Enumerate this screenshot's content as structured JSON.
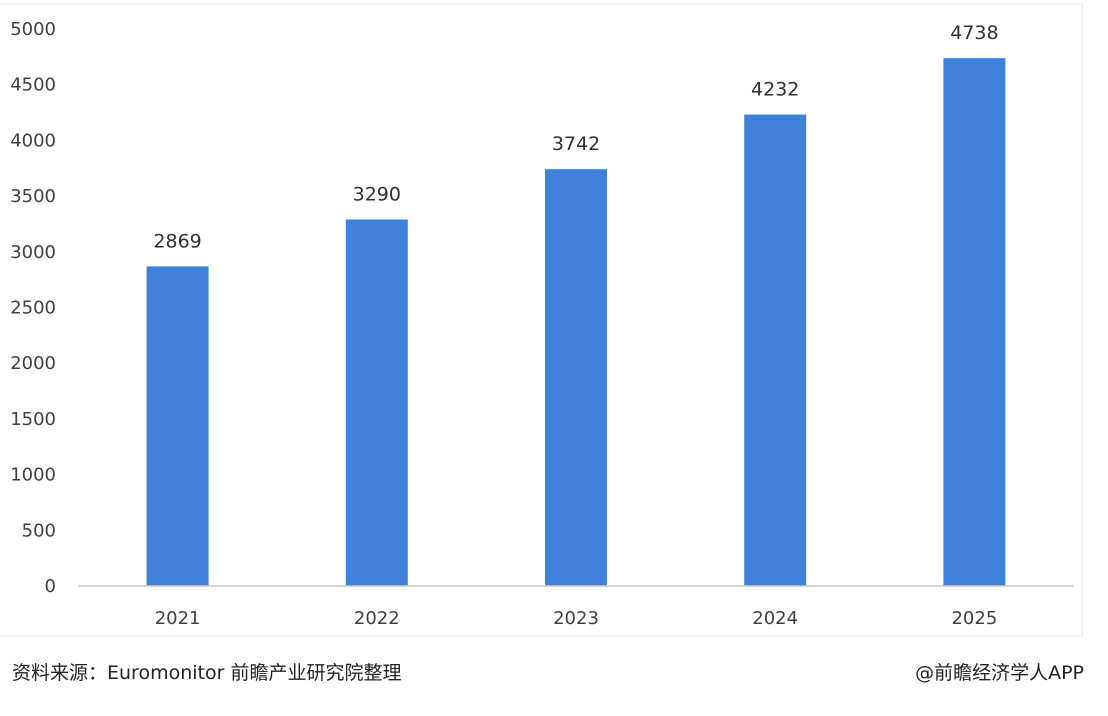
{
  "chart_data": {
    "type": "bar",
    "categories": [
      "2021",
      "2022",
      "2023",
      "2024",
      "2025"
    ],
    "values": [
      2869,
      3290,
      3742,
      4232,
      4738
    ],
    "data_labels": [
      "2869",
      "3290",
      "3742",
      "4232",
      "4738"
    ],
    "y_ticks": [
      "0",
      "500",
      "1000",
      "1500",
      "2000",
      "2500",
      "3000",
      "3500",
      "4000",
      "4500",
      "5000"
    ],
    "ylim": [
      0,
      5000
    ],
    "grid": false,
    "legend": "none",
    "title": "",
    "xlabel": "",
    "ylabel": "",
    "bar_color": "#3f80d9"
  },
  "footer": {
    "source": "资料来源：Euromonitor 前瞻产业研究院整理",
    "credit": "@前瞻经济学人APP"
  },
  "colors": {
    "bar": "#3f80d9",
    "axis": "#c8c8c8",
    "text": "#404040",
    "frame": "#e6e6e6"
  }
}
